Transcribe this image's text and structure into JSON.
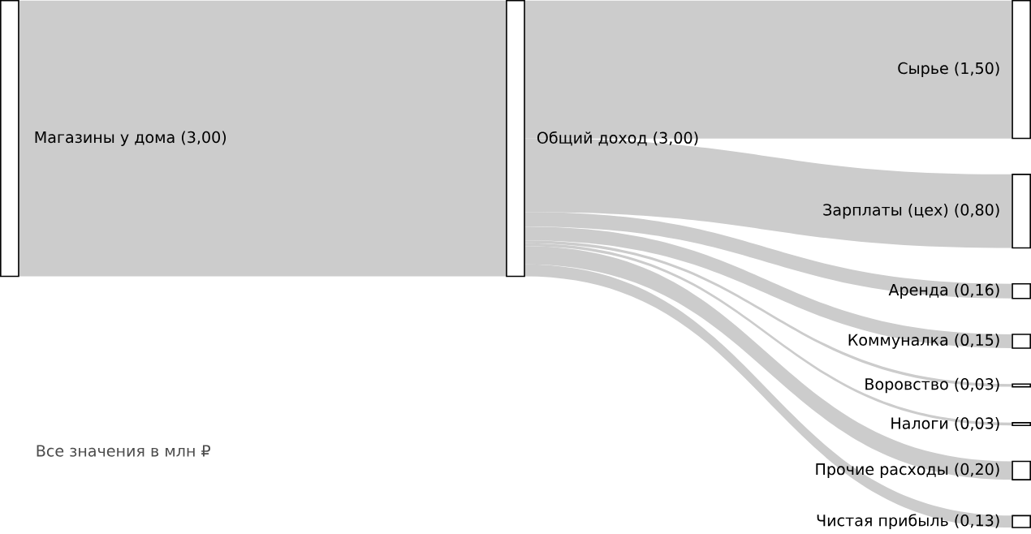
{
  "chart_data": {
    "type": "other",
    "color": "#cccccc",
    "categories": [
      "Магазины у дома",
      "Общий доход",
      "Сырье",
      "Зарплаты (цех)",
      "Аренда",
      "Коммуналка",
      "Воровство",
      "Налоги",
      "Прочие расходы",
      "Чистая прибыль"
    ],
    "values": [
      3.0,
      3.0,
      1.5,
      0.8,
      0.16,
      0.15,
      0.03,
      0.03,
      0.2,
      0.13
    ],
    "value_labels": [
      "(3,00)",
      "(3,00)",
      "(1,50)",
      "(0,80)",
      "(0,16)",
      "(0,15)",
      "(0,03)",
      "(0,03)",
      "(0,20)",
      "(0,13)"
    ],
    "annotations": [
      "Все значения в млн ₽"
    ]
  }
}
